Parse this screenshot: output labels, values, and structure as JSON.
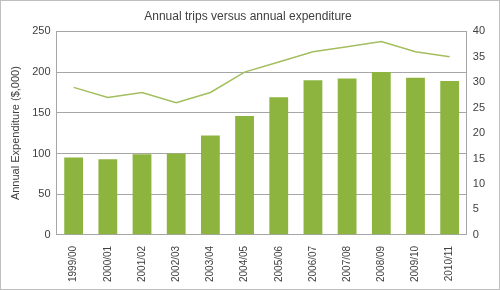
{
  "chart_data": {
    "type": "bar",
    "title": "Annual trips versus annual expenditure",
    "ylabel": "Annual Expenditure ($,000)",
    "categories": [
      "1999/00",
      "2000/01",
      "2001/02",
      "2002/03",
      "2003/04",
      "2004/05",
      "2005/06",
      "2006/07",
      "2007/08",
      "2008/09",
      "2009/10",
      "2010/11"
    ],
    "series": [
      {
        "type": "bar",
        "color": "#8db43e",
        "values": [
          95,
          93,
          99,
          100,
          122,
          146,
          169,
          190,
          192,
          200,
          193,
          189
        ]
      },
      {
        "type": "line",
        "color": "#a3be5e",
        "axis": "y2",
        "marker": "none",
        "values": [
          29,
          27,
          28,
          26,
          28,
          32,
          34,
          36,
          37,
          38,
          36,
          35
        ]
      }
    ],
    "ylim": [
      0,
      250
    ],
    "yticks": [
      0,
      50,
      100,
      150,
      200,
      250
    ],
    "y2lim": [
      0,
      40
    ],
    "y2ticks": [
      0,
      5,
      10,
      15,
      20,
      25,
      30,
      35,
      40
    ],
    "grid": true
  }
}
